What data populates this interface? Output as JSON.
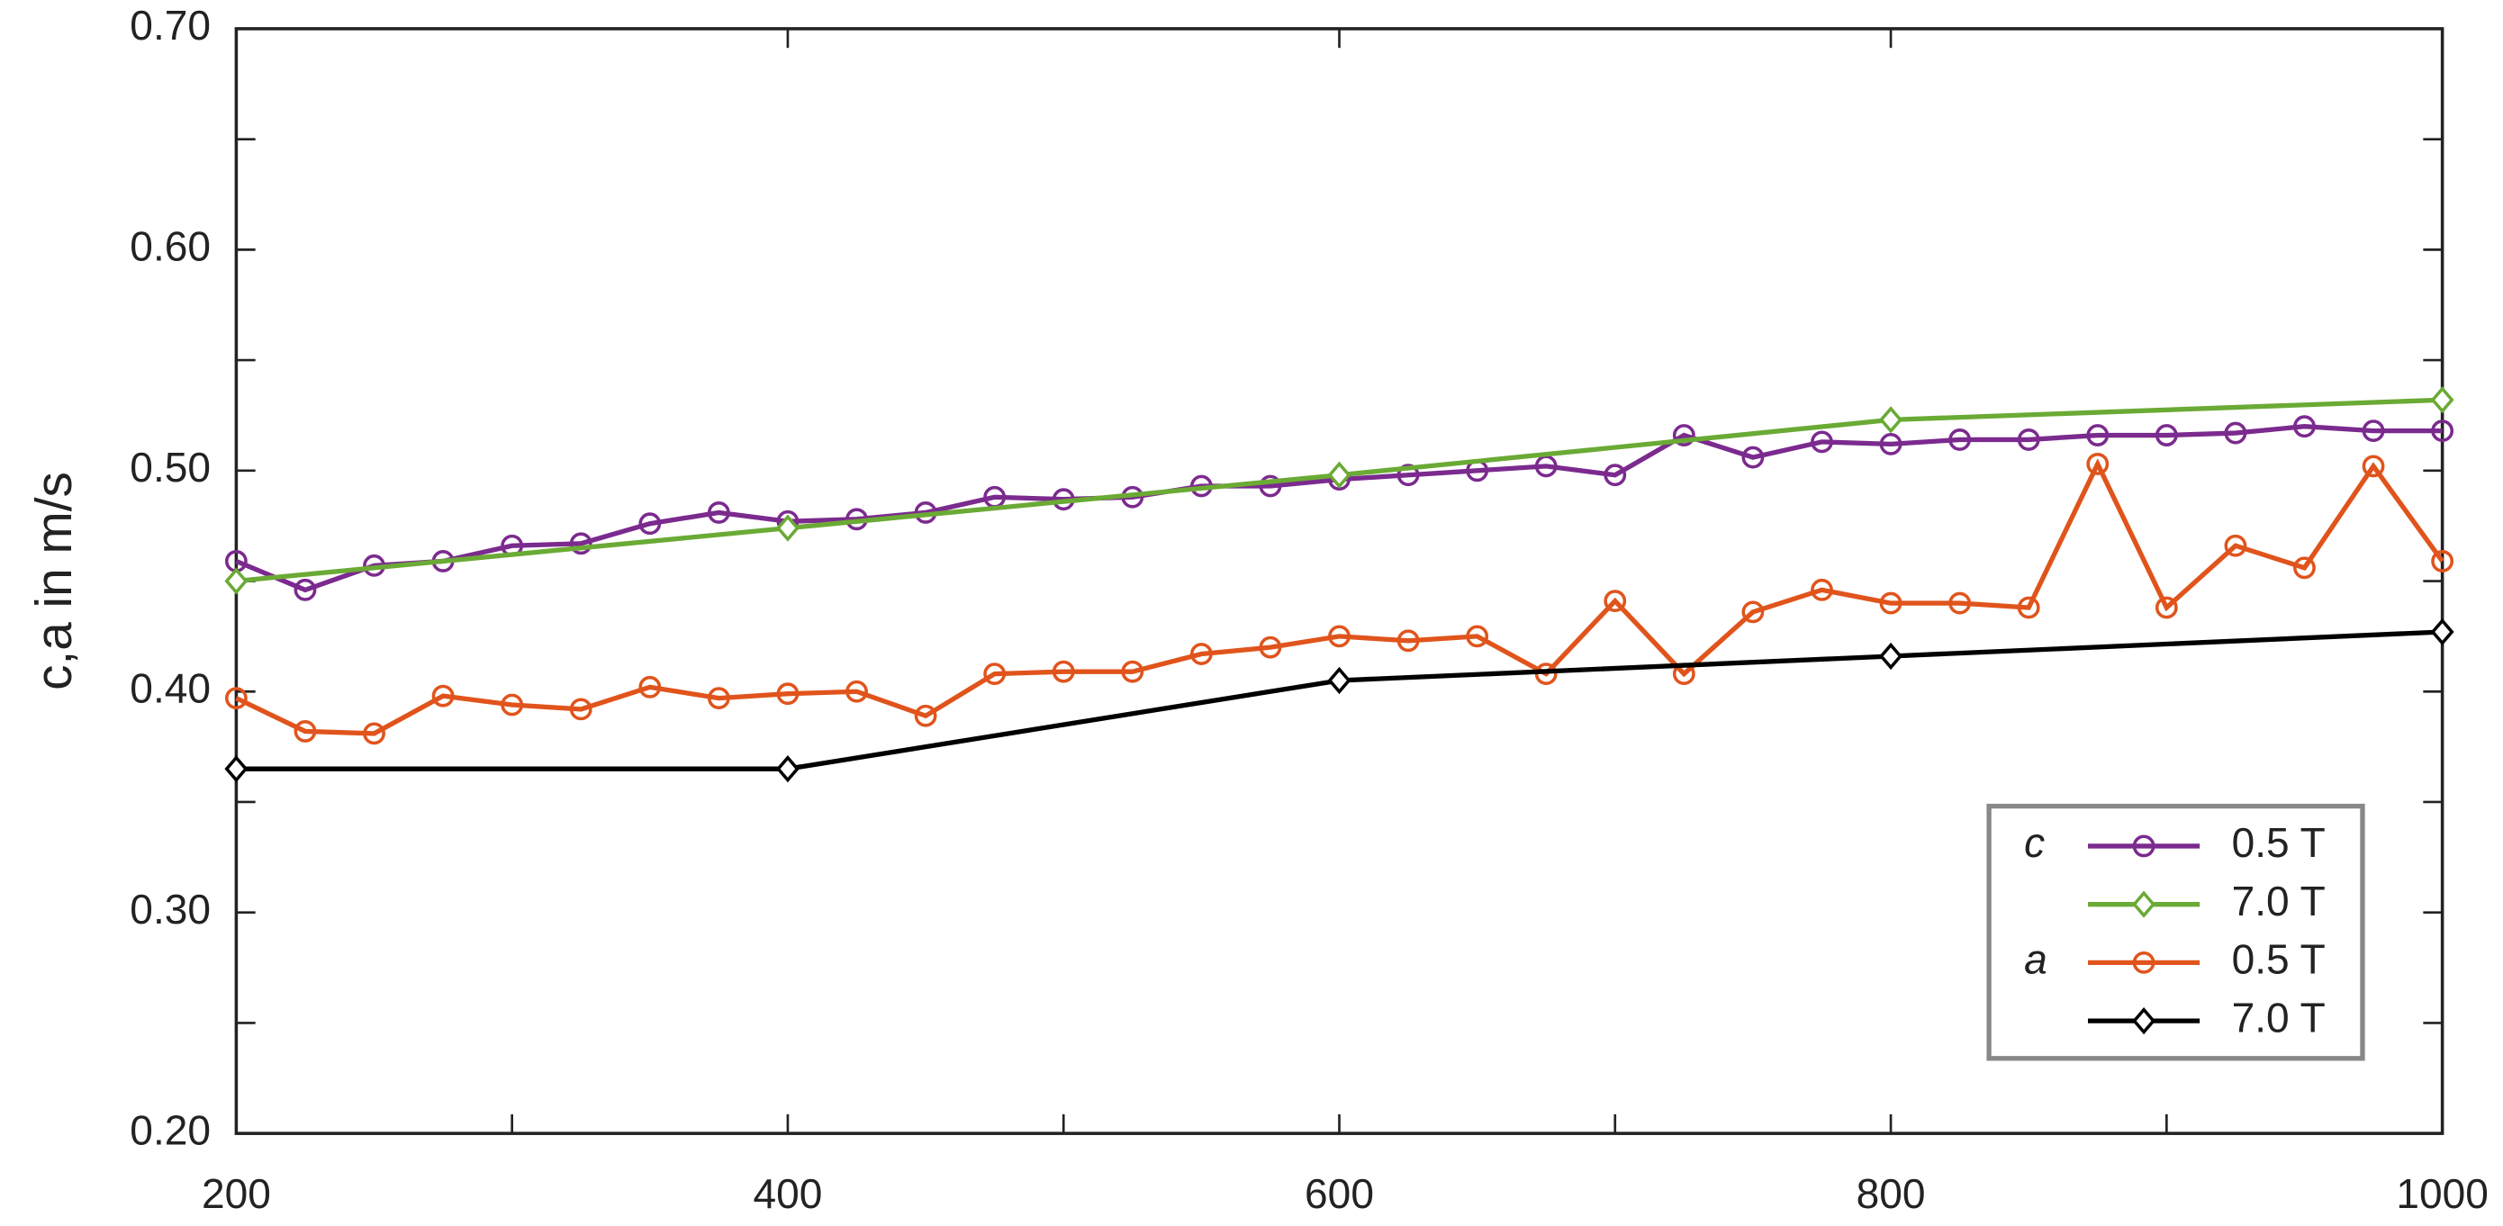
{
  "chart_data": {
    "type": "line",
    "ylabel": "c,a  in m/s",
    "xlim": [
      200,
      1000
    ],
    "xticks": [
      200,
      400,
      600,
      800,
      1000
    ],
    "xminorticks": [
      300,
      500,
      700,
      900
    ],
    "ylim": [
      0.2,
      0.7
    ],
    "yticks": [
      {
        "value": 0.2,
        "label": "0.20"
      },
      {
        "value": 0.3,
        "label": "0.30"
      },
      {
        "value": 0.4,
        "label": "0.40"
      },
      {
        "value": 0.5,
        "label": "0.50"
      },
      {
        "value": 0.6,
        "label": "0.60"
      },
      {
        "value": 0.7,
        "label": "0.70"
      }
    ],
    "yminorticks": [
      0.25,
      0.35,
      0.45,
      0.55,
      0.65
    ],
    "legend_position": "lower right",
    "series": [
      {
        "group": "c",
        "name": "0.5 T",
        "color": "#7b2a8e",
        "marker": "circle",
        "x": [
          200,
          225,
          250,
          275,
          300,
          325,
          350,
          375,
          400,
          425,
          450,
          475,
          500,
          525,
          550,
          575,
          600,
          625,
          650,
          675,
          700,
          725,
          750,
          775,
          800,
          825,
          850,
          875,
          900,
          925,
          950,
          975,
          1000
        ],
        "values": [
          0.459,
          0.446,
          0.457,
          0.459,
          0.466,
          0.467,
          0.476,
          0.481,
          0.477,
          0.478,
          0.481,
          0.488,
          0.487,
          0.488,
          0.493,
          0.493,
          0.496,
          0.498,
          0.5,
          0.502,
          0.498,
          0.516,
          0.506,
          0.513,
          0.512,
          0.514,
          0.514,
          0.516,
          0.516,
          0.517,
          0.52,
          0.518,
          0.518
        ]
      },
      {
        "name": "7.0 T",
        "color": "#6aaa35",
        "marker": "diamond",
        "x": [
          200,
          400,
          600,
          800,
          1000
        ],
        "values": [
          0.45,
          0.474,
          0.498,
          0.523,
          0.532
        ]
      },
      {
        "group": "a",
        "name": "0.5 T",
        "color": "#e0541c",
        "marker": "circle",
        "x": [
          200,
          225,
          250,
          275,
          300,
          325,
          350,
          375,
          400,
          425,
          450,
          475,
          500,
          525,
          550,
          575,
          600,
          625,
          650,
          675,
          700,
          725,
          750,
          775,
          800,
          825,
          850,
          875,
          900,
          925,
          950,
          975,
          1000
        ],
        "values": [
          0.397,
          0.382,
          0.381,
          0.398,
          0.394,
          0.392,
          0.402,
          0.397,
          0.399,
          0.4,
          0.389,
          0.408,
          0.409,
          0.409,
          0.417,
          0.42,
          0.425,
          0.423,
          0.425,
          0.408,
          0.441,
          0.408,
          0.436,
          0.446,
          0.44,
          0.44,
          0.438,
          0.503,
          0.438,
          0.466,
          0.456,
          0.502,
          0.459
        ]
      },
      {
        "name": "7.0 T",
        "color": "#000000",
        "marker": "diamond",
        "x": [
          200,
          400,
          600,
          800,
          1000
        ],
        "values": [
          0.365,
          0.365,
          0.405,
          0.416,
          0.427
        ]
      }
    ]
  }
}
